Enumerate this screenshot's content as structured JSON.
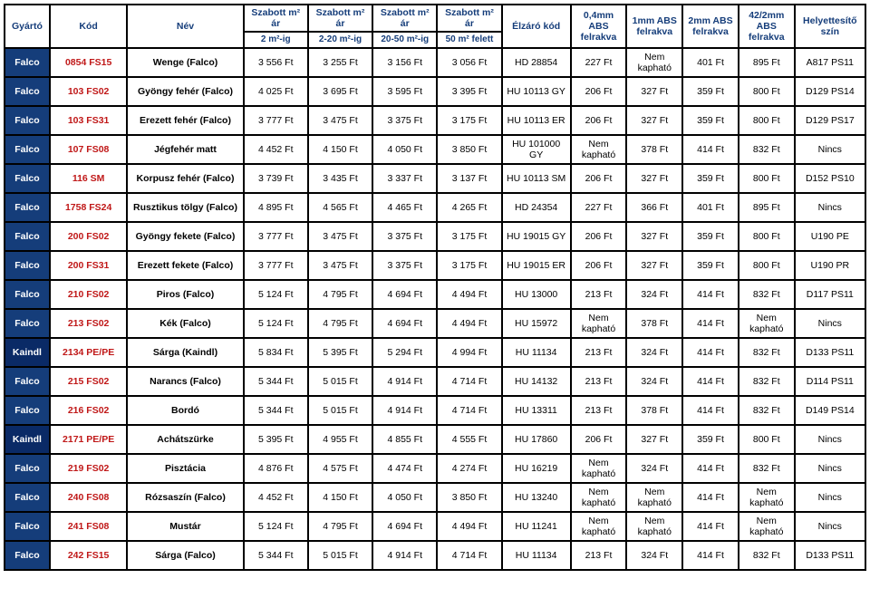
{
  "header": {
    "row1": [
      "Gyártó",
      "Kód",
      "Név",
      "Szabott m² ár",
      "Szabott m² ár",
      "Szabott m² ár",
      "Szabott m² ár",
      "Élzáró kód",
      "0,4mm ABS felrakva",
      "1mm ABS felrakva",
      "2mm ABS felrakva",
      "42/2mm ABS felrakva",
      "Helyettesítő szín"
    ],
    "row2_sub": [
      "2 m²-ig",
      "2-20 m²-ig",
      "20-50 m²-ig",
      "50 m² felett"
    ],
    "colors": {
      "header_text": "#153d7a",
      "border": "#000000",
      "mfr_falco_bg": "#153d7a",
      "mfr_kaindl_bg": "#0a2a66",
      "mfr_text": "#ffffff",
      "code_text": "#c01818"
    }
  },
  "rows": [
    {
      "mfr": "Falco",
      "code": "0854 FS15",
      "name": "Wenge (Falco)",
      "p": [
        "3 556 Ft",
        "3 255 Ft",
        "3 156 Ft",
        "3 056 Ft"
      ],
      "edge": "HD 28854",
      "abs": [
        "227 Ft",
        "Nem kapható",
        "401 Ft",
        "895 Ft"
      ],
      "sub": "A817 PS11"
    },
    {
      "mfr": "Falco",
      "code": "103 FS02",
      "name": "Gyöngy fehér (Falco)",
      "p": [
        "4 025 Ft",
        "3 695 Ft",
        "3 595 Ft",
        "3 395 Ft"
      ],
      "edge": "HU 10113 GY",
      "abs": [
        "206 Ft",
        "327 Ft",
        "359 Ft",
        "800 Ft"
      ],
      "sub": "D129 PS14"
    },
    {
      "mfr": "Falco",
      "code": "103 FS31",
      "name": "Erezett fehér (Falco)",
      "p": [
        "3 777 Ft",
        "3 475 Ft",
        "3 375 Ft",
        "3 175 Ft"
      ],
      "edge": "HU 10113 ER",
      "abs": [
        "206 Ft",
        "327 Ft",
        "359 Ft",
        "800 Ft"
      ],
      "sub": "D129 PS17"
    },
    {
      "mfr": "Falco",
      "code": "107 FS08",
      "name": "Jégfehér matt",
      "p": [
        "4 452 Ft",
        "4 150 Ft",
        "4 050 Ft",
        "3 850 Ft"
      ],
      "edge": "HU 101000 GY",
      "abs": [
        "Nem kapható",
        "378 Ft",
        "414 Ft",
        "832 Ft"
      ],
      "sub": "Nincs"
    },
    {
      "mfr": "Falco",
      "code": "116 SM",
      "name": "Korpusz fehér (Falco)",
      "p": [
        "3 739 Ft",
        "3 435 Ft",
        "3 337 Ft",
        "3 137 Ft"
      ],
      "edge": "HU 10113 SM",
      "abs": [
        "206 Ft",
        "327 Ft",
        "359 Ft",
        "800 Ft"
      ],
      "sub": "D152 PS10"
    },
    {
      "mfr": "Falco",
      "code": "1758 FS24",
      "name": "Rusztikus tölgy (Falco)",
      "p": [
        "4 895 Ft",
        "4 565 Ft",
        "4 465 Ft",
        "4 265 Ft"
      ],
      "edge": "HD 24354",
      "abs": [
        "227 Ft",
        "366 Ft",
        "401 Ft",
        "895 Ft"
      ],
      "sub": "Nincs"
    },
    {
      "mfr": "Falco",
      "code": "200 FS02",
      "name": "Gyöngy fekete (Falco)",
      "p": [
        "3 777 Ft",
        "3 475 Ft",
        "3 375 Ft",
        "3 175 Ft"
      ],
      "edge": "HU 19015 GY",
      "abs": [
        "206 Ft",
        "327 Ft",
        "359 Ft",
        "800 Ft"
      ],
      "sub": "U190 PE"
    },
    {
      "mfr": "Falco",
      "code": "200 FS31",
      "name": "Erezett fekete (Falco)",
      "p": [
        "3 777 Ft",
        "3 475 Ft",
        "3 375 Ft",
        "3 175 Ft"
      ],
      "edge": "HU 19015 ER",
      "abs": [
        "206 Ft",
        "327 Ft",
        "359 Ft",
        "800 Ft"
      ],
      "sub": "U190 PR"
    },
    {
      "mfr": "Falco",
      "code": "210 FS02",
      "name": "Piros (Falco)",
      "p": [
        "5 124 Ft",
        "4 795 Ft",
        "4 694 Ft",
        "4 494 Ft"
      ],
      "edge": "HU 13000",
      "abs": [
        "213 Ft",
        "324 Ft",
        "414 Ft",
        "832 Ft"
      ],
      "sub": "D117 PS11"
    },
    {
      "mfr": "Falco",
      "code": "213 FS02",
      "name": "Kék (Falco)",
      "p": [
        "5 124 Ft",
        "4 795 Ft",
        "4 694 Ft",
        "4 494 Ft"
      ],
      "edge": "HU 15972",
      "abs": [
        "Nem kapható",
        "378 Ft",
        "414 Ft",
        "Nem kapható"
      ],
      "sub": "Nincs"
    },
    {
      "mfr": "Kaindl",
      "code": "2134 PE/PE",
      "name": "Sárga (Kaindl)",
      "p": [
        "5 834 Ft",
        "5 395 Ft",
        "5 294 Ft",
        "4 994 Ft"
      ],
      "edge": "HU 11134",
      "abs": [
        "213 Ft",
        "324 Ft",
        "414 Ft",
        "832 Ft"
      ],
      "sub": "D133 PS11"
    },
    {
      "mfr": "Falco",
      "code": "215 FS02",
      "name": "Narancs (Falco)",
      "p": [
        "5 344 Ft",
        "5 015 Ft",
        "4 914 Ft",
        "4 714 Ft"
      ],
      "edge": "HU 14132",
      "abs": [
        "213 Ft",
        "324 Ft",
        "414 Ft",
        "832 Ft"
      ],
      "sub": "D114 PS11"
    },
    {
      "mfr": "Falco",
      "code": "216 FS02",
      "name": "Bordó",
      "p": [
        "5 344 Ft",
        "5 015 Ft",
        "4 914 Ft",
        "4 714 Ft"
      ],
      "edge": "HU 13311",
      "abs": [
        "213 Ft",
        "378 Ft",
        "414 Ft",
        "832 Ft"
      ],
      "sub": "D149 PS14"
    },
    {
      "mfr": "Kaindl",
      "code": "2171 PE/PE",
      "name": "Achátszürke",
      "p": [
        "5 395 Ft",
        "4 955 Ft",
        "4 855 Ft",
        "4 555 Ft"
      ],
      "edge": "HU 17860",
      "abs": [
        "206 Ft",
        "327 Ft",
        "359 Ft",
        "800 Ft"
      ],
      "sub": "Nincs"
    },
    {
      "mfr": "Falco",
      "code": "219 FS02",
      "name": "Pisztácia",
      "p": [
        "4 876 Ft",
        "4 575 Ft",
        "4 474 Ft",
        "4 274 Ft"
      ],
      "edge": "HU 16219",
      "abs": [
        "Nem kapható",
        "324 Ft",
        "414 Ft",
        "832 Ft"
      ],
      "sub": "Nincs"
    },
    {
      "mfr": "Falco",
      "code": "240 FS08",
      "name": "Rózsaszín (Falco)",
      "p": [
        "4 452 Ft",
        "4 150 Ft",
        "4 050 Ft",
        "3 850 Ft"
      ],
      "edge": "HU 13240",
      "abs": [
        "Nem kapható",
        "Nem kapható",
        "414 Ft",
        "Nem kapható"
      ],
      "sub": "Nincs"
    },
    {
      "mfr": "Falco",
      "code": "241 FS08",
      "name": "Mustár",
      "p": [
        "5 124 Ft",
        "4 795 Ft",
        "4 694 Ft",
        "4 494 Ft"
      ],
      "edge": "HU 11241",
      "abs": [
        "Nem kapható",
        "Nem kapható",
        "414 Ft",
        "Nem kapható"
      ],
      "sub": "Nincs"
    },
    {
      "mfr": "Falco",
      "code": "242 FS15",
      "name": "Sárga (Falco)",
      "p": [
        "5 344 Ft",
        "5 015 Ft",
        "4 914 Ft",
        "4 714 Ft"
      ],
      "edge": "HU 11134",
      "abs": [
        "213 Ft",
        "324 Ft",
        "414 Ft",
        "832 Ft"
      ],
      "sub": "D133 PS11"
    }
  ]
}
